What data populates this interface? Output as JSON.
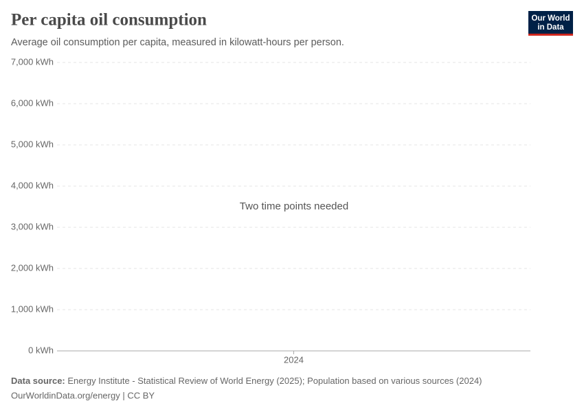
{
  "chart_data": {
    "type": "line",
    "title": "Per capita oil consumption",
    "subtitle": "Average oil consumption per capita, measured in kilowatt-hours per person.",
    "logo": [
      "Our World",
      "in Data"
    ],
    "annotation": "Two time points needed",
    "categories": [
      "2024"
    ],
    "series": [],
    "ylim": [
      0,
      7000
    ],
    "yticks": [
      {
        "value": 0,
        "label": "0 kWh"
      },
      {
        "value": 1000,
        "label": "1,000 kWh"
      },
      {
        "value": 2000,
        "label": "2,000 kWh"
      },
      {
        "value": 3000,
        "label": "3,000 kWh"
      },
      {
        "value": 4000,
        "label": "4,000 kWh"
      },
      {
        "value": 5000,
        "label": "5,000 kWh"
      },
      {
        "value": 6000,
        "label": "6,000 kWh"
      },
      {
        "value": 7000,
        "label": "7,000 kWh"
      }
    ],
    "grid": true,
    "source_label": "Data source:",
    "source": "Energy Institute - Statistical Review of World Energy (2025); Population based on various sources (2024)",
    "footer": "OurWorldinData.org/energy | CC BY"
  }
}
